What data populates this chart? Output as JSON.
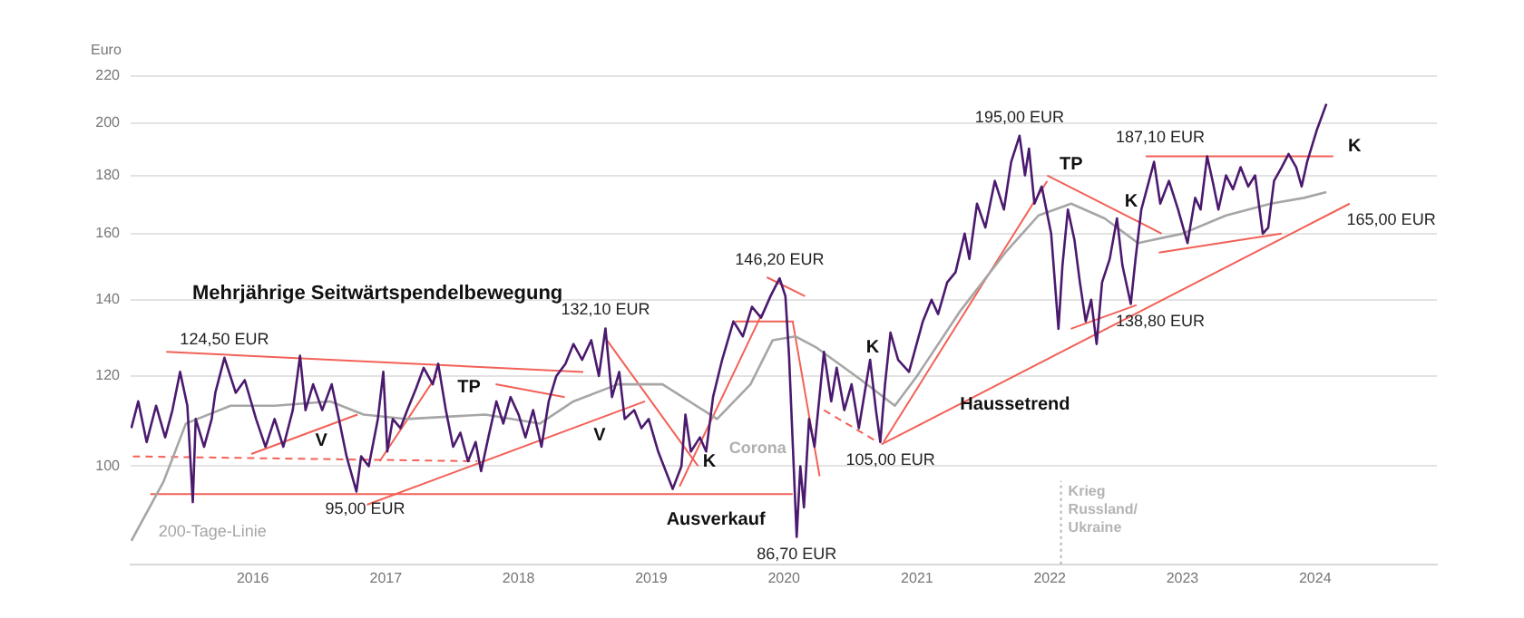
{
  "chart_data": {
    "type": "line",
    "ylabel": "Euro",
    "log": true,
    "grid": "y",
    "marker": "none",
    "xlim": [
      "2015-01-30",
      "2024-12-01"
    ],
    "xticks": [
      {
        "value": "2016-01-01",
        "label": "2016"
      },
      {
        "value": "2017-01-01",
        "label": "2017"
      },
      {
        "value": "2018-01-01",
        "label": "2018"
      },
      {
        "value": "2019-01-01",
        "label": "2019"
      },
      {
        "value": "2020-01-01",
        "label": "2020"
      },
      {
        "value": "2021-01-01",
        "label": "2021"
      },
      {
        "value": "2022-01-01",
        "label": "2022"
      },
      {
        "value": "2023-01-01",
        "label": "2023"
      },
      {
        "value": "2024-01-01",
        "label": "2024"
      }
    ],
    "ylim": [
      82,
      220
    ],
    "yticks": [
      100,
      120,
      140,
      160,
      180,
      200,
      220
    ],
    "series": [
      {
        "color": "#4b1a6e",
        "x": [
          "2015-02-01",
          "2015-02-20",
          "2015-03-15",
          "2015-04-10",
          "2015-05-05",
          "2015-05-25",
          "2015-06-15",
          "2015-07-05",
          "2015-07-20",
          "2015-07-28",
          "2015-08-20",
          "2015-09-10",
          "2015-09-20",
          "2015-10-15",
          "2015-11-15",
          "2015-12-10",
          "2016-01-10",
          "2016-02-05",
          "2016-03-01",
          "2016-03-25",
          "2016-04-20",
          "2016-05-10",
          "2016-05-25",
          "2016-06-15",
          "2016-07-10",
          "2016-08-05",
          "2016-08-25",
          "2016-09-15",
          "2016-10-12",
          "2016-10-25",
          "2016-11-15",
          "2016-12-10",
          "2016-12-25",
          "2017-01-05",
          "2017-01-20",
          "2017-02-10",
          "2017-03-01",
          "2017-03-25",
          "2017-04-15",
          "2017-05-10",
          "2017-05-25",
          "2017-06-15",
          "2017-07-05",
          "2017-07-25",
          "2017-08-15",
          "2017-09-05",
          "2017-09-20",
          "2017-10-10",
          "2017-11-01",
          "2017-11-20",
          "2017-12-10",
          "2018-01-01",
          "2018-01-20",
          "2018-02-10",
          "2018-03-05",
          "2018-03-25",
          "2018-04-15",
          "2018-05-10",
          "2018-06-01",
          "2018-06-25",
          "2018-07-20",
          "2018-08-10",
          "2018-08-28",
          "2018-09-15",
          "2018-10-05",
          "2018-10-20",
          "2018-11-15",
          "2018-12-05",
          "2018-12-25",
          "2019-01-20",
          "2019-03-01",
          "2019-03-25",
          "2019-04-05",
          "2019-04-20",
          "2019-05-15",
          "2019-06-01",
          "2019-06-20",
          "2019-07-15",
          "2019-08-15",
          "2019-09-10",
          "2019-10-05",
          "2019-10-30",
          "2019-11-25",
          "2019-12-20",
          "2020-01-05",
          "2020-01-15",
          "2020-01-25",
          "2020-02-05",
          "2020-02-15",
          "2020-02-25",
          "2020-03-10",
          "2020-03-25",
          "2020-04-20",
          "2020-05-10",
          "2020-05-25",
          "2020-06-15",
          "2020-07-05",
          "2020-07-25",
          "2020-08-10",
          "2020-08-25",
          "2020-09-10",
          "2020-09-22",
          "2020-10-05",
          "2020-10-20",
          "2020-11-10",
          "2020-12-10",
          "2021-01-17",
          "2021-02-10",
          "2021-02-28",
          "2021-03-25",
          "2021-04-17",
          "2021-05-12",
          "2021-05-25",
          "2021-06-15",
          "2021-07-08",
          "2021-08-03",
          "2021-08-28",
          "2021-09-17",
          "2021-10-10",
          "2021-10-25",
          "2021-11-05",
          "2021-11-20",
          "2021-12-10",
          "2022-01-05",
          "2022-01-25",
          "2022-02-05",
          "2022-02-20",
          "2022-03-10",
          "2022-03-25",
          "2022-04-10",
          "2022-04-25",
          "2022-05-10",
          "2022-05-25",
          "2022-06-15",
          "2022-07-05",
          "2022-07-20",
          "2022-08-12",
          "2022-08-25",
          "2022-09-10",
          "2022-09-25",
          "2022-10-15",
          "2022-11-01",
          "2022-11-25",
          "2022-12-20",
          "2023-01-15",
          "2023-02-05",
          "2023-02-20",
          "2023-03-10",
          "2023-03-25",
          "2023-04-10",
          "2023-05-01",
          "2023-05-20",
          "2023-06-10",
          "2023-07-01",
          "2023-07-20",
          "2023-08-10",
          "2023-08-25",
          "2023-09-10",
          "2023-10-01",
          "2023-10-20",
          "2023-11-10",
          "2023-11-25",
          "2023-12-10",
          "2024-01-05",
          "2024-02-01"
        ],
        "values": [
          108,
          114,
          105,
          113,
          106,
          112,
          121,
          113,
          93,
          110,
          104,
          110,
          116,
          124.5,
          116,
          119,
          110,
          104,
          110,
          104,
          112,
          125,
          112,
          118,
          112,
          118,
          110,
          102,
          95,
          102,
          100,
          110,
          121,
          103,
          110,
          108,
          112,
          117,
          122,
          118,
          123,
          112,
          104,
          107,
          101,
          105,
          99,
          106,
          114,
          109,
          115,
          111,
          106,
          112,
          104,
          114,
          120,
          123,
          128,
          124,
          129,
          120,
          132.1,
          115,
          121,
          110,
          112,
          108,
          110,
          103,
          95.5,
          100,
          111,
          103,
          106,
          103,
          115,
          124,
          134,
          130,
          138,
          135,
          141,
          146.2,
          141,
          125,
          105,
          86.7,
          100,
          92,
          110,
          104,
          126,
          114,
          122,
          112,
          118,
          108,
          116,
          124,
          112,
          105,
          118,
          131,
          124,
          121,
          134,
          140,
          136,
          145,
          148,
          160,
          152,
          170,
          162,
          178,
          168,
          185,
          195,
          180,
          190,
          170,
          176,
          160,
          132,
          150,
          168,
          158,
          145,
          134,
          140,
          128,
          145,
          152,
          165,
          150,
          138.8,
          152,
          168,
          175,
          185,
          170,
          178,
          168,
          157,
          172,
          168,
          187.1,
          178,
          168,
          180,
          175,
          183,
          176,
          180,
          160,
          162,
          178,
          183,
          188,
          183,
          176,
          185,
          197,
          208
        ]
      },
      {
        "name": "200-Tage-Linie",
        "color": "#a6a6a6",
        "x": [
          "2015-02",
          "2015-05",
          "2015-07",
          "2015-11",
          "2016-03",
          "2016-08",
          "2016-11",
          "2017-03",
          "2017-10",
          "2018-03",
          "2018-06",
          "2018-10",
          "2019-02",
          "2019-07",
          "2019-10",
          "2019-12",
          "2020-02",
          "2020-04",
          "2020-08",
          "2020-11",
          "2021-01",
          "2021-05",
          "2021-09",
          "2021-12",
          "2022-03",
          "2022-06",
          "2022-09",
          "2023-01",
          "2023-05",
          "2023-09",
          "2023-12",
          "2024-02"
        ],
        "values": [
          86,
          97,
          109,
          113,
          113,
          114,
          111,
          110,
          111,
          109,
          114,
          118,
          118,
          110,
          118,
          129,
          130,
          127,
          119,
          113,
          120,
          137,
          154,
          166,
          170,
          165,
          157,
          160,
          166,
          170,
          172,
          174
        ]
      },
      {
        "color": "#f26157",
        "x": [
          "2015-05-08",
          "2018-06-28"
        ],
        "values": [
          126,
          121
        ]
      },
      {
        "color": "#f26157",
        "x": [
          "2015-03-25",
          "2020-01-25"
        ],
        "values": [
          94.5,
          94.5
        ]
      },
      {
        "color": "#f26157",
        "line_style": "dashed",
        "x": [
          "2015-02-05",
          "2017-09-10"
        ],
        "values": [
          102,
          101
        ]
      },
      {
        "color": "#f26157",
        "x": [
          "2015-12-28",
          "2016-10-15"
        ],
        "values": [
          102.5,
          111
        ]
      },
      {
        "color": "#f26157",
        "x": [
          "2016-12-15",
          "2017-05-20"
        ],
        "values": [
          101,
          120
        ]
      },
      {
        "color": "#f26157",
        "x": [
          "2016-11-10",
          "2018-12-15"
        ],
        "values": [
          92.5,
          114
        ]
      },
      {
        "color": "#f26157",
        "x": [
          "2017-10-30",
          "2018-05-08"
        ],
        "values": [
          118,
          115
        ]
      },
      {
        "color": "#f26157",
        "x": [
          "2018-09-01",
          "2019-05-10"
        ],
        "values": [
          129,
          100
        ]
      },
      {
        "color": "#f26157",
        "x": [
          "2019-03-20",
          "2019-11-01"
        ],
        "values": [
          96,
          136
        ]
      },
      {
        "color": "#f26157",
        "x": [
          "2019-08-20",
          "2020-01-28"
        ],
        "values": [
          134,
          134
        ]
      },
      {
        "color": "#f26157",
        "x": [
          "2019-11-15",
          "2020-02-28"
        ],
        "values": [
          146.5,
          141
        ]
      },
      {
        "color": "#f26157",
        "x": [
          "2020-01-25",
          "2020-04-08"
        ],
        "values": [
          134,
          98
        ]
      },
      {
        "color": "#f26157",
        "line_style": "dashed",
        "x": [
          "2020-04-20",
          "2020-09-15"
        ],
        "values": [
          112,
          105
        ]
      },
      {
        "color": "#f26157",
        "x": [
          "2020-10-01",
          "2021-12-25"
        ],
        "values": [
          105,
          178
        ]
      },
      {
        "color": "#f26157",
        "x": [
          "2020-09-25",
          "2024-04-05"
        ],
        "values": [
          104.5,
          170
        ]
      },
      {
        "color": "#f26157",
        "x": [
          "2022-02-28",
          "2022-08-28"
        ],
        "values": [
          132,
          138.5
        ]
      },
      {
        "color": "#f26157",
        "x": [
          "2021-12-25",
          "2022-11-05"
        ],
        "values": [
          180,
          160
        ]
      },
      {
        "color": "#f26157",
        "x": [
          "2022-10-28",
          "2023-10-01"
        ],
        "values": [
          154,
          160
        ]
      },
      {
        "color": "#f26157",
        "x": [
          "2022-09-22",
          "2024-02-20"
        ],
        "values": [
          187.1,
          187.1
        ]
      }
    ],
    "ref_lines": [
      {
        "axis": "x",
        "value": "2022-02-01",
        "label": "Krieg Russland/ Ukraine",
        "color": "#b4b4b4",
        "line_style": "dotted"
      }
    ],
    "annotations": [
      {
        "text": "124,50 EUR",
        "x": "2015-10-15",
        "y": 124.5
      },
      {
        "text": "95,00 EUR",
        "x": "2016-11-05",
        "y": 95
      },
      {
        "text": "132,10 EUR",
        "x": "2018-08-28",
        "y": 132.1
      },
      {
        "text": "146,20 EUR",
        "x": "2019-12-20",
        "y": 146.2
      },
      {
        "text": "86,70 EUR",
        "x": "2020-02-05",
        "y": 86.7
      },
      {
        "text": "105,00 EUR",
        "x": "2020-10-20",
        "y": 105
      },
      {
        "text": "195,00 EUR",
        "x": "2021-10-10",
        "y": 195
      },
      {
        "text": "187,10 EUR",
        "x": "2022-11-01",
        "y": 187.1
      },
      {
        "text": "138,80 EUR",
        "x": "2022-11-01",
        "y": 138.8
      },
      "165,00 EUR",
      "Mehrjährige Seitwärtspendelbewegung",
      "V",
      "TP",
      "V",
      "K",
      "Ausverkauf",
      "K",
      "Haussetrend",
      "TP",
      "K",
      "K",
      "Corona"
    ]
  }
}
